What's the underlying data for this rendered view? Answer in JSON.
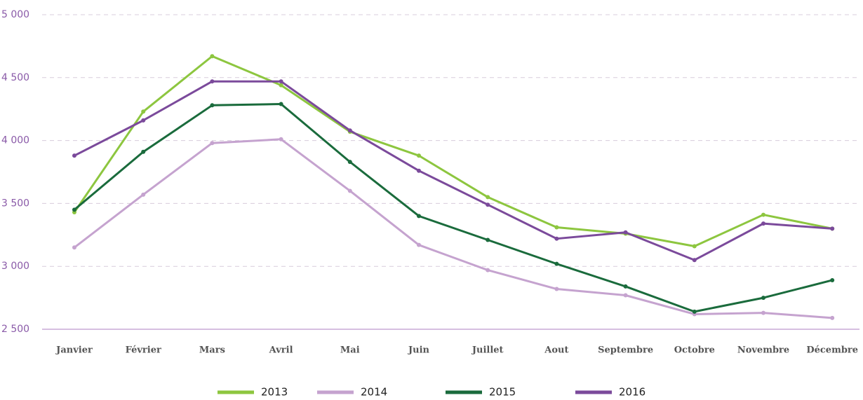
{
  "chart_data": {
    "type": "line",
    "categories": [
      "Janvier",
      "Février",
      "Mars",
      "Avril",
      "Mai",
      "Juin",
      "Juillet",
      "Aout",
      "Septembre",
      "Octobre",
      "Novembre",
      "Décembre"
    ],
    "series": [
      {
        "name": "2013",
        "color": "#8dc63f",
        "values": [
          3430,
          4230,
          4670,
          4440,
          4070,
          3880,
          3550,
          3310,
          3260,
          3160,
          3410,
          3300
        ]
      },
      {
        "name": "2014",
        "color": "#c5a3cf",
        "values": [
          3150,
          3570,
          3980,
          4010,
          3600,
          3170,
          2970,
          2820,
          2770,
          2620,
          2630,
          2590
        ]
      },
      {
        "name": "2015",
        "color": "#1a6b3c",
        "values": [
          3450,
          3910,
          4280,
          4290,
          3830,
          3400,
          3210,
          3020,
          2840,
          2640,
          2750,
          2890
        ]
      },
      {
        "name": "2016",
        "color": "#7b4a9b",
        "values": [
          3880,
          4160,
          4470,
          4470,
          4080,
          3760,
          3490,
          3220,
          3270,
          3050,
          3340,
          3300
        ]
      }
    ],
    "ylim": [
      2500,
      5000
    ],
    "yticks": [
      {
        "value": 2500,
        "label": "2 500"
      },
      {
        "value": 3000,
        "label": "3 000"
      },
      {
        "value": 3500,
        "label": "3 500"
      },
      {
        "value": 4000,
        "label": "4 000"
      },
      {
        "value": 4500,
        "label": "4 500"
      },
      {
        "value": 5000,
        "label": "5 000"
      }
    ],
    "grid": true
  }
}
